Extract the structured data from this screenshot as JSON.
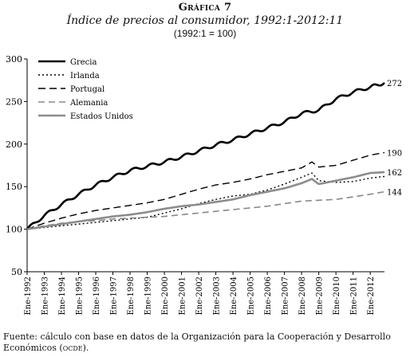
{
  "header": {
    "kicker": "Gráfica 7",
    "title": "Índice de precios al consumidor, 1992:1-2012:11",
    "subtitle": "(1992:1 = 100)"
  },
  "source": {
    "text_main": "Fuente: cálculo con base en datos de la Organización para la Cooperación y Desarrollo Económicos (",
    "text_abbr": "ocde",
    "text_end": ")."
  },
  "chart_data": {
    "type": "line",
    "title": "Índice de precios al consumidor, 1992:1-2012:11",
    "subtitle": "(1992:1 = 100)",
    "xlabel": "",
    "ylabel": "",
    "ylim": [
      50,
      300
    ],
    "yticks": [
      50,
      100,
      150,
      200,
      250,
      300
    ],
    "xlim": [
      1992.0,
      2012.83
    ],
    "xtick_labels": [
      "Ene-1992",
      "Ene-1993",
      "Ene-1994",
      "Ene-1995",
      "Ene-1996",
      "Ene-1997",
      "Ene-1998",
      "Ene-1999",
      "Ene-2000",
      "Ene-2001",
      "Ene-2002",
      "Ene-2003",
      "Ene-2004",
      "Ene-2005",
      "Ene-2006",
      "Ene-2007",
      "Ene-2008",
      "Ene-2009",
      "Ene-2010",
      "Ene-2011",
      "Ene-2012"
    ],
    "grid": false,
    "legend_position": "top-left",
    "end_labels": [
      "272",
      "190",
      "162",
      "144"
    ],
    "series": [
      {
        "name": "Grecia",
        "color": "#000000",
        "style": "solid-thick",
        "x": [
          1992,
          1993,
          1994,
          1995,
          1996,
          1997,
          1998,
          1999,
          2000,
          2001,
          2002,
          2003,
          2004,
          2005,
          2006,
          2007,
          2008,
          2009,
          2010,
          2011,
          2012,
          2012.83
        ],
        "values": [
          100,
          116,
          129,
          141,
          152,
          161,
          169,
          174,
          179,
          185,
          192,
          199,
          205,
          212,
          219,
          226,
          236,
          240,
          253,
          261,
          267,
          272
        ]
      },
      {
        "name": "Irlanda",
        "color": "#000000",
        "style": "dotted",
        "x": [
          1992,
          1993,
          1994,
          1995,
          1996,
          1997,
          1998,
          1999,
          2000,
          2001,
          2002,
          2003,
          2004,
          2005,
          2006,
          2007,
          2008,
          2008.6,
          2009,
          2010,
          2011,
          2012,
          2012.83
        ],
        "values": [
          100,
          102,
          104,
          106,
          108,
          110,
          112,
          114,
          119,
          124,
          130,
          135,
          139,
          141,
          146,
          153,
          161,
          166,
          157,
          155,
          156,
          160,
          162
        ]
      },
      {
        "name": "Portugal",
        "color": "#000000",
        "style": "long-dash",
        "x": [
          1992,
          1993,
          1994,
          1995,
          1996,
          1997,
          1998,
          1999,
          2000,
          2001,
          2002,
          2003,
          2004,
          2005,
          2006,
          2007,
          2008,
          2008.6,
          2009,
          2010,
          2011,
          2012,
          2012.83
        ],
        "values": [
          100,
          107,
          113,
          118,
          122,
          125,
          128,
          131,
          135,
          141,
          147,
          152,
          155,
          159,
          164,
          168,
          172,
          179,
          173,
          175,
          181,
          187,
          190
        ]
      },
      {
        "name": "Alemania",
        "color": "#888888",
        "style": "dash",
        "x": [
          1992,
          1993,
          1994,
          1995,
          1996,
          1997,
          1998,
          1999,
          2000,
          2001,
          2002,
          2003,
          2004,
          2005,
          2006,
          2007,
          2008,
          2009,
          2010,
          2011,
          2012,
          2012.83
        ],
        "values": [
          100,
          104,
          107,
          109,
          110,
          112,
          113,
          114,
          115,
          117,
          119,
          121,
          123,
          125,
          127,
          130,
          133,
          134,
          135,
          138,
          141,
          144
        ]
      },
      {
        "name": "Estados Unidos",
        "color": "#8c8c8c",
        "style": "solid-thick",
        "x": [
          1992,
          1993,
          1994,
          1995,
          1996,
          1997,
          1998,
          1999,
          2000,
          2001,
          2002,
          2003,
          2004,
          2005,
          2006,
          2007,
          2008,
          2008.6,
          2009,
          2010,
          2011,
          2012,
          2012.83
        ],
        "values": [
          100,
          103,
          106,
          109,
          112,
          115,
          117,
          120,
          124,
          127,
          129,
          132,
          135,
          140,
          144,
          148,
          154,
          159,
          153,
          157,
          161,
          166,
          167
        ]
      }
    ]
  }
}
